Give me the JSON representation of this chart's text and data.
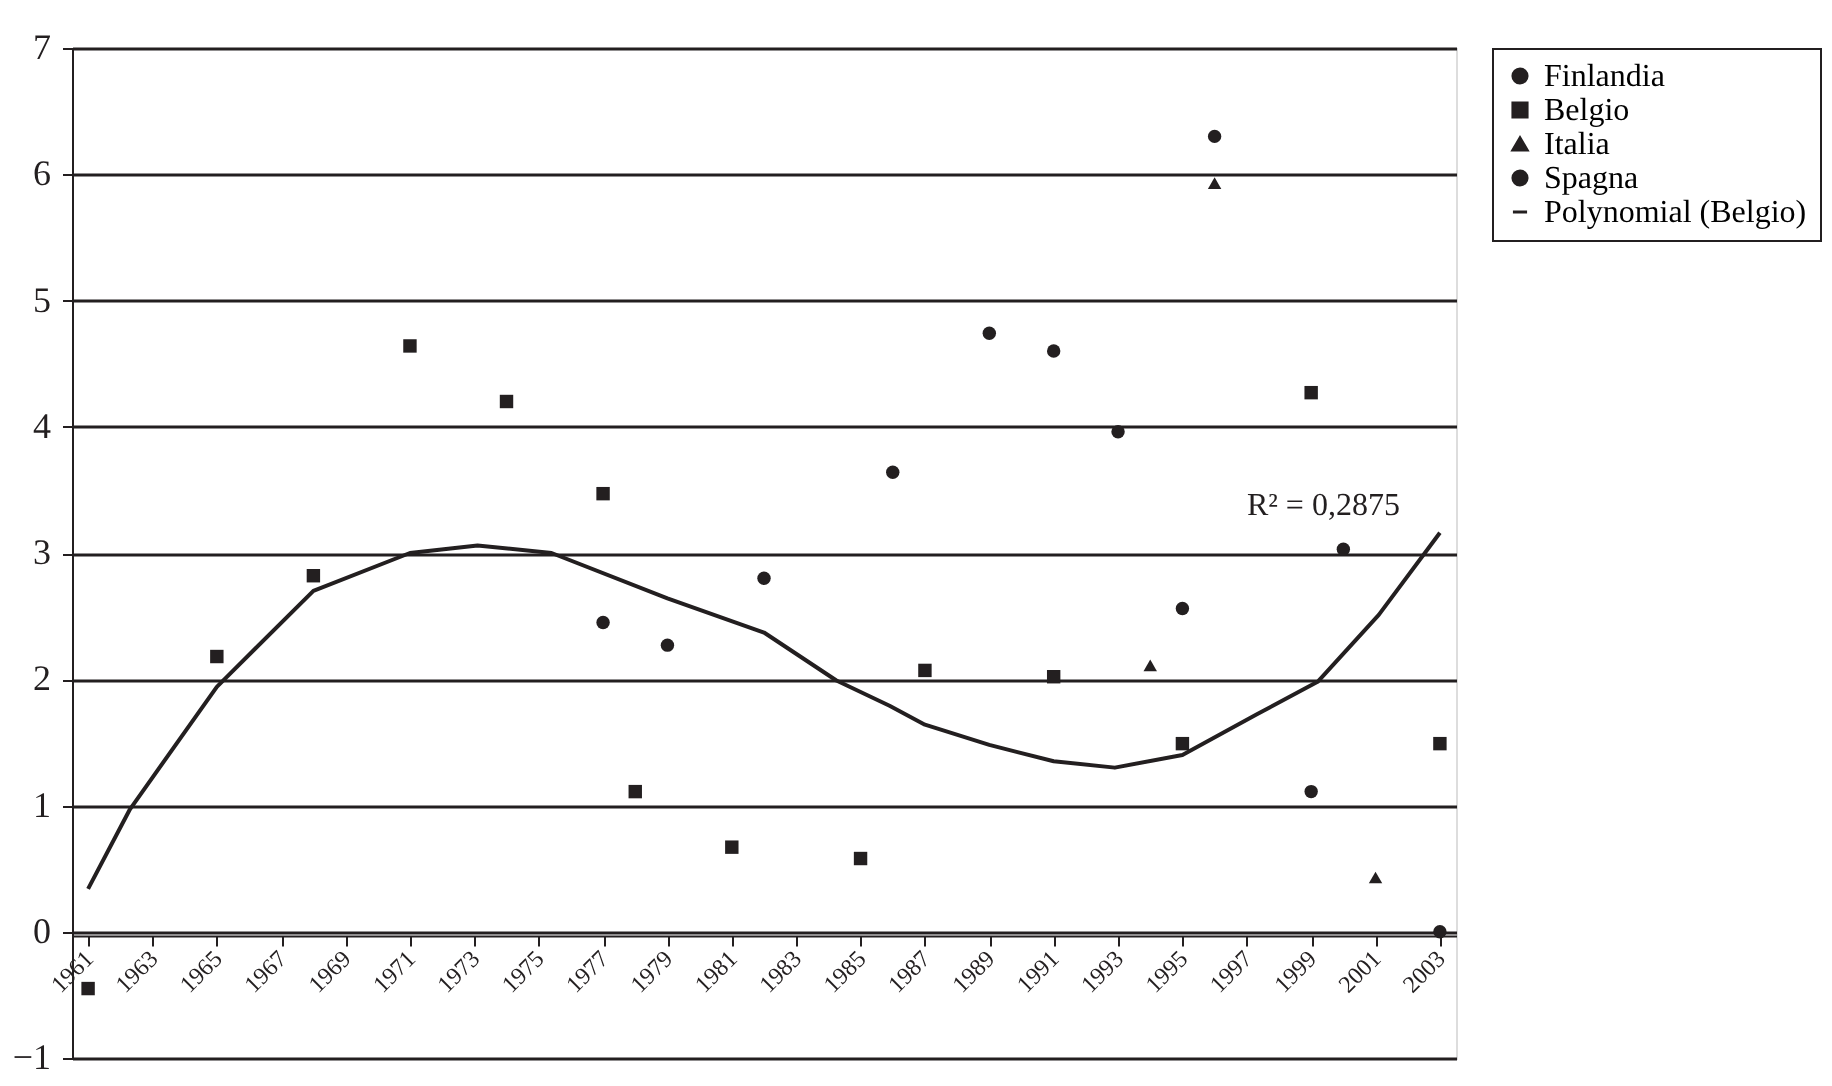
{
  "chart_data": {
    "type": "scatter",
    "xlim": [
      1960.5,
      2003.5
    ],
    "xticks": [
      1961,
      1963,
      1965,
      1967,
      1969,
      1971,
      1973,
      1975,
      1977,
      1979,
      1981,
      1983,
      1985,
      1987,
      1989,
      1991,
      1993,
      1995,
      1997,
      1999,
      2001,
      2003
    ],
    "ylim": [
      -1,
      7
    ],
    "yticks": [
      -1,
      0,
      1,
      2,
      3,
      4,
      5,
      6,
      7
    ],
    "grid": "y",
    "legend": "right",
    "series": [
      {
        "name": "Finlandia",
        "type": "scatter",
        "marker": "circle",
        "color": "#231f20",
        "x": [
          1979,
          1986,
          1991,
          1995,
          1999
        ],
        "values": [
          2.27,
          3.64,
          4.6,
          2.56,
          1.11
        ]
      },
      {
        "name": "Belgio",
        "type": "scatter",
        "marker": "square",
        "color": "#231f20",
        "x": [
          1961,
          1965,
          1968,
          1971,
          1974,
          1977,
          1978,
          1981,
          1985,
          1987,
          1991,
          1995,
          1999,
          2003
        ],
        "values": [
          -0.45,
          2.18,
          2.82,
          4.64,
          4.2,
          3.47,
          1.11,
          0.67,
          0.58,
          2.07,
          2.02,
          1.49,
          4.27,
          1.49
        ]
      },
      {
        "name": "Italia",
        "type": "scatter",
        "marker": "triangle",
        "color": "#231f20",
        "x": [
          1994,
          1996,
          2001
        ],
        "values": [
          2.11,
          5.93,
          0.43
        ]
      },
      {
        "name": "Spagna",
        "type": "scatter",
        "marker": "circle",
        "color": "#231f20",
        "x": [
          1977,
          1982,
          1989,
          1993,
          1996,
          2000,
          2003
        ],
        "values": [
          2.45,
          2.8,
          4.74,
          3.96,
          6.3,
          3.03,
          0
        ]
      },
      {
        "name": "Polynomial (Belgio)",
        "type": "line",
        "line_style": "solid",
        "color": "#231f20",
        "x": [
          1961,
          1962.3,
          1965,
          1968,
          1971,
          1973.1,
          1975.4,
          1979,
          1982,
          1984.25,
          1985.9,
          1987,
          1989,
          1991,
          1992.9,
          1995,
          1997.3,
          1999.2,
          2001.1,
          2003
        ],
        "values": [
          0.34,
          0.97,
          1.94,
          2.7,
          3.0,
          3.06,
          3.0,
          2.64,
          2.37,
          1.99,
          1.79,
          1.64,
          1.48,
          1.35,
          1.3,
          1.4,
          1.72,
          1.98,
          2.51,
          3.16
        ]
      }
    ],
    "annotations": [
      "R² = 0,2875"
    ]
  }
}
